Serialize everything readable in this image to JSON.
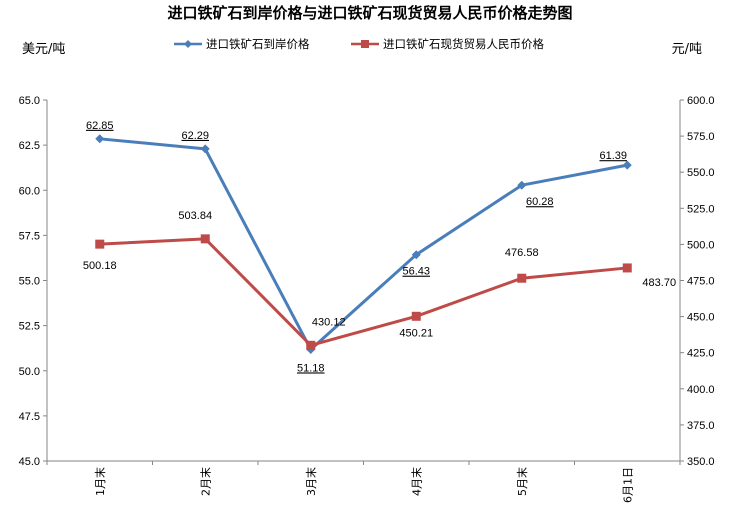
{
  "chart_data": {
    "type": "line",
    "title": "进口铁矿石到岸价格与进口铁矿石现货贸易人民币价格走势图",
    "ylabel_left": "美元/吨",
    "ylabel_right": "元/吨",
    "categories": [
      "1月末",
      "2月末",
      "3月末",
      "4月末",
      "5月末",
      "6月1日"
    ],
    "y_left": {
      "min": 45.0,
      "max": 65.0,
      "step": 2.5,
      "ticks": [
        "45.0",
        "47.5",
        "50.0",
        "52.5",
        "55.0",
        "57.5",
        "60.0",
        "62.5",
        "65.0"
      ]
    },
    "y_right": {
      "min": 350.0,
      "max": 600.0,
      "step": 25.0,
      "ticks": [
        "350.0",
        "375.0",
        "400.0",
        "425.0",
        "450.0",
        "475.0",
        "500.0",
        "525.0",
        "550.0",
        "575.0",
        "600.0"
      ]
    },
    "series": [
      {
        "name": "进口铁矿石到岸价格",
        "axis": "left",
        "color": "#4a7ebb",
        "marker": "diamond",
        "values": [
          62.85,
          62.29,
          51.18,
          56.43,
          60.28,
          61.39
        ],
        "labels": [
          "62.85",
          "62.29",
          "51.18",
          "56.43",
          "60.28",
          "61.39"
        ]
      },
      {
        "name": "进口铁矿石现货贸易人民币价格",
        "axis": "right",
        "color": "#be4b48",
        "marker": "square",
        "values": [
          500.18,
          503.84,
          430.12,
          450.21,
          476.58,
          483.7
        ],
        "labels": [
          "500.18",
          "503.84",
          "430.12",
          "450.21",
          "476.58",
          "483.70"
        ]
      }
    ],
    "grid": false,
    "legend": "top"
  }
}
